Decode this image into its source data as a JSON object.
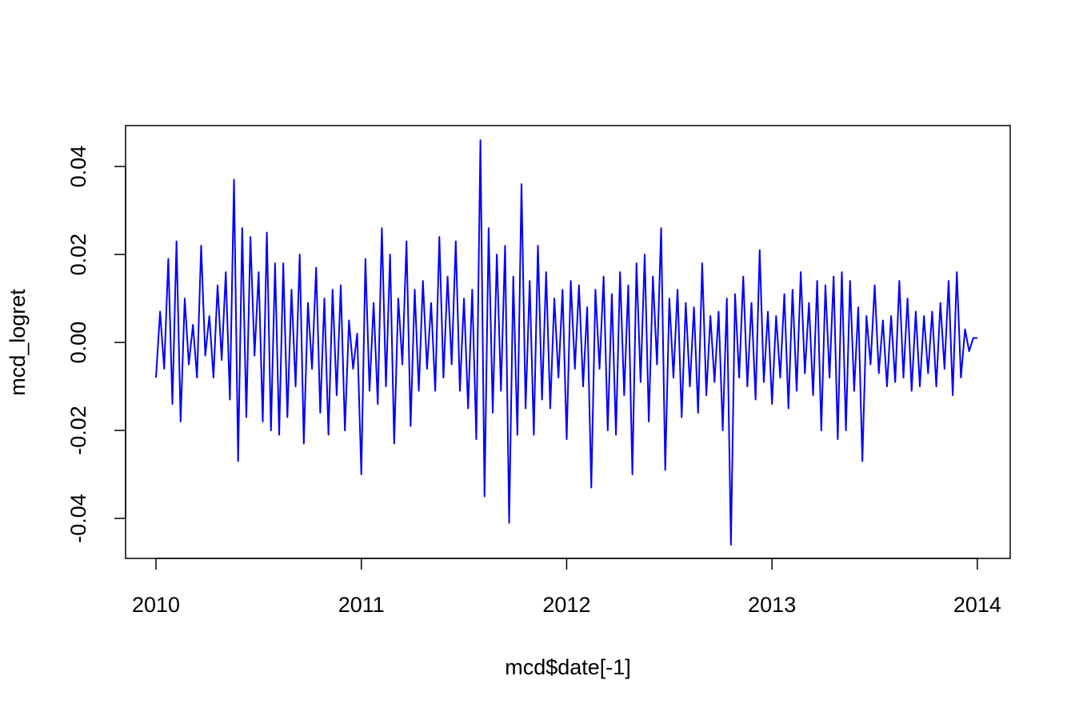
{
  "chart_data": {
    "type": "line",
    "x_label": "mcd$date[-1]",
    "y_label": "mcd_logret",
    "color": "#0000ff",
    "xlim": [
      2009.852,
      2014.16
    ],
    "ylim": [
      -0.0491,
      0.0493
    ],
    "xticks": [
      2010,
      2011,
      2012,
      2013,
      2014
    ],
    "yticks": [
      -0.04,
      -0.02,
      {
        "value": 0,
        "label": "0.00"
      },
      0.02,
      0.04
    ],
    "x": [
      2010,
      2010.02,
      2010.04,
      2010.06,
      2010.08,
      2010.1,
      2010.12,
      2010.14,
      2010.16,
      2010.18,
      2010.2,
      2010.22,
      2010.24,
      2010.26,
      2010.28,
      2010.3,
      2010.32,
      2010.34,
      2010.36,
      2010.38,
      2010.4,
      2010.42,
      2010.44,
      2010.46,
      2010.48,
      2010.5,
      2010.52,
      2010.54,
      2010.56,
      2010.58,
      2010.6,
      2010.62,
      2010.64,
      2010.66,
      2010.68,
      2010.7,
      2010.72,
      2010.74,
      2010.76,
      2010.78,
      2010.8,
      2010.82,
      2010.84,
      2010.86,
      2010.88,
      2010.9,
      2010.92,
      2010.94,
      2010.96,
      2010.98,
      2011,
      2011.02,
      2011.04,
      2011.06,
      2011.08,
      2011.1,
      2011.12,
      2011.14,
      2011.16,
      2011.18,
      2011.2,
      2011.22,
      2011.24,
      2011.26,
      2011.28,
      2011.3,
      2011.32,
      2011.34,
      2011.36,
      2011.38,
      2011.4,
      2011.42,
      2011.44,
      2011.46,
      2011.48,
      2011.5,
      2011.52,
      2011.54,
      2011.56,
      2011.58,
      2011.6,
      2011.62,
      2011.64,
      2011.66,
      2011.68,
      2011.7,
      2011.72,
      2011.74,
      2011.76,
      2011.78,
      2011.8,
      2011.82,
      2011.84,
      2011.86,
      2011.88,
      2011.9,
      2011.92,
      2011.94,
      2011.96,
      2011.98,
      2012,
      2012.02,
      2012.04,
      2012.06,
      2012.08,
      2012.1,
      2012.12,
      2012.14,
      2012.16,
      2012.18,
      2012.2,
      2012.22,
      2012.24,
      2012.26,
      2012.28,
      2012.3,
      2012.32,
      2012.34,
      2012.36,
      2012.38,
      2012.4,
      2012.42,
      2012.44,
      2012.46,
      2012.48,
      2012.5,
      2012.52,
      2012.54,
      2012.56,
      2012.58,
      2012.6,
      2012.62,
      2012.64,
      2012.66,
      2012.68,
      2012.7,
      2012.72,
      2012.74,
      2012.76,
      2012.78,
      2012.8,
      2012.82,
      2012.84,
      2012.86,
      2012.88,
      2012.9,
      2012.92,
      2012.94,
      2012.96,
      2012.98,
      2013,
      2013.02,
      2013.04,
      2013.06,
      2013.08,
      2013.1,
      2013.12,
      2013.14,
      2013.16,
      2013.18,
      2013.2,
      2013.22,
      2013.24,
      2013.26,
      2013.28,
      2013.3,
      2013.32,
      2013.34,
      2013.36,
      2013.38,
      2013.4,
      2013.42,
      2013.44,
      2013.46,
      2013.48,
      2013.5,
      2013.52,
      2013.54,
      2013.56,
      2013.58,
      2013.6,
      2013.62,
      2013.64,
      2013.66,
      2013.68,
      2013.7,
      2013.72,
      2013.74,
      2013.76,
      2013.78,
      2013.8,
      2013.82,
      2013.84,
      2013.86,
      2013.88,
      2013.9,
      2013.92,
      2013.94,
      2013.96,
      2013.98,
      2014
    ],
    "values": [
      -0.008,
      0.007,
      -0.006,
      0.019,
      -0.014,
      0.023,
      -0.018,
      0.01,
      -0.005,
      0.004,
      -0.008,
      0.022,
      -0.003,
      0.006,
      -0.008,
      0.013,
      -0.004,
      0.016,
      -0.013,
      0.037,
      -0.027,
      0.026,
      -0.017,
      0.024,
      -0.003,
      0.016,
      -0.018,
      0.025,
      -0.02,
      0.018,
      -0.021,
      0.018,
      -0.017,
      0.012,
      -0.01,
      0.02,
      -0.023,
      0.009,
      -0.006,
      0.017,
      -0.016,
      0.01,
      -0.021,
      0.012,
      -0.012,
      0.013,
      -0.02,
      0.005,
      -0.006,
      0.002,
      -0.03,
      0.019,
      -0.011,
      0.009,
      -0.014,
      0.026,
      -0.01,
      0.02,
      -0.023,
      0.01,
      -0.005,
      0.023,
      -0.019,
      0.012,
      -0.011,
      0.014,
      -0.006,
      0.009,
      -0.011,
      0.024,
      -0.008,
      0.015,
      -0.005,
      0.023,
      -0.011,
      0.01,
      -0.015,
      0.012,
      -0.022,
      0.046,
      -0.035,
      0.026,
      -0.016,
      0.02,
      -0.011,
      0.022,
      -0.041,
      0.015,
      -0.021,
      0.036,
      -0.015,
      0.014,
      -0.021,
      0.022,
      -0.013,
      0.016,
      -0.015,
      0.01,
      -0.008,
      0.012,
      -0.022,
      0.014,
      -0.006,
      0.013,
      -0.01,
      0.008,
      -0.033,
      0.012,
      -0.006,
      0.015,
      -0.02,
      0.011,
      -0.021,
      0.016,
      -0.012,
      0.013,
      -0.03,
      0.018,
      -0.009,
      0.02,
      -0.018,
      0.015,
      -0.005,
      0.026,
      -0.029,
      0.01,
      -0.008,
      0.012,
      -0.017,
      0.009,
      -0.01,
      0.008,
      -0.016,
      0.018,
      -0.012,
      0.006,
      -0.009,
      0.007,
      -0.02,
      0.01,
      -0.046,
      0.011,
      -0.008,
      0.015,
      -0.01,
      0.009,
      -0.013,
      0.021,
      -0.009,
      0.007,
      -0.014,
      0.006,
      -0.008,
      0.011,
      -0.015,
      0.012,
      -0.011,
      0.016,
      -0.007,
      0.009,
      -0.012,
      0.014,
      -0.02,
      0.013,
      -0.008,
      0.015,
      -0.022,
      0.016,
      -0.02,
      0.014,
      -0.011,
      0.008,
      -0.027,
      0.006,
      -0.005,
      0.013,
      -0.007,
      0.005,
      -0.01,
      0.006,
      -0.009,
      0.014,
      -0.008,
      0.01,
      -0.011,
      0.007,
      -0.01,
      0.006,
      -0.007,
      0.007,
      -0.01,
      0.009,
      -0.006,
      0.014,
      -0.012,
      0.016,
      -0.008,
      0.003,
      -0.002,
      0.001,
      0.001
    ]
  }
}
